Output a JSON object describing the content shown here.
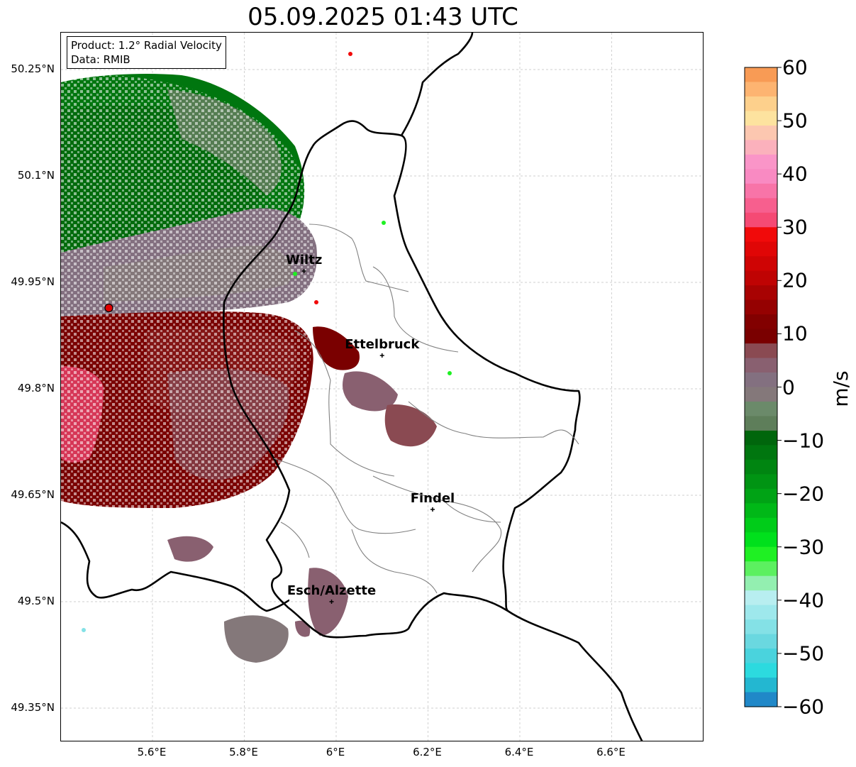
{
  "title": "05.09.2025 01:43 UTC",
  "info": {
    "product": "Product: 1.2° Radial Velocity",
    "data_source": "Data: RMIB"
  },
  "map": {
    "lat_ticks": [
      {
        "value": 50.25,
        "label": "50.25°N"
      },
      {
        "value": 50.1,
        "label": "50.1°N"
      },
      {
        "value": 49.95,
        "label": "49.95°N"
      },
      {
        "value": 49.8,
        "label": "49.8°N"
      },
      {
        "value": 49.65,
        "label": "49.65°N"
      },
      {
        "value": 49.5,
        "label": "49.5°N"
      },
      {
        "value": 49.35,
        "label": "49.35°N"
      }
    ],
    "lon_ticks": [
      {
        "value": 5.6,
        "label": "5.6°E"
      },
      {
        "value": 5.8,
        "label": "5.8°E"
      },
      {
        "value": 6.0,
        "label": "6°E"
      },
      {
        "value": 6.2,
        "label": "6.2°E"
      },
      {
        "value": 6.4,
        "label": "6.4°E"
      },
      {
        "value": 6.6,
        "label": "6.6°E"
      }
    ],
    "cities": [
      {
        "name": "Wiltz",
        "lon": 5.93,
        "lat": 49.966
      },
      {
        "name": "Ettelbruck",
        "lon": 6.1,
        "lat": 49.847
      },
      {
        "name": "Findel",
        "lon": 6.21,
        "lat": 49.63
      },
      {
        "name": "Esch/Alzette",
        "lon": 5.99,
        "lat": 49.5
      }
    ],
    "radar_site": {
      "lon": 5.505,
      "lat": 49.914
    }
  },
  "colorbar": {
    "unit": "m/s",
    "min": -60,
    "max": 60,
    "ticks": [
      {
        "value": 60,
        "label": "60"
      },
      {
        "value": 50,
        "label": "50"
      },
      {
        "value": 40,
        "label": "40"
      },
      {
        "value": 30,
        "label": "30"
      },
      {
        "value": 20,
        "label": "20"
      },
      {
        "value": 10,
        "label": "10"
      },
      {
        "value": 0,
        "label": "0"
      },
      {
        "value": -10,
        "label": "−10"
      },
      {
        "value": -20,
        "label": "−20"
      },
      {
        "value": -30,
        "label": "−30"
      },
      {
        "value": -40,
        "label": "−40"
      },
      {
        "value": -50,
        "label": "−50"
      },
      {
        "value": -60,
        "label": "−60"
      }
    ],
    "colors_top_to_bottom": [
      "#f89b55",
      "#fdb471",
      "#fdd08c",
      "#fde39f",
      "#fcc7b0",
      "#fbb1bc",
      "#fa95c8",
      "#f98ac2",
      "#f874a8",
      "#f75f8e",
      "#f54a74",
      "#f10a0a",
      "#e00606",
      "#cf0404",
      "#bf0303",
      "#a80202",
      "#950101",
      "#820000",
      "#7a0000",
      "#8a4a52",
      "#896070",
      "#837080",
      "#84787a",
      "#6b8a6a",
      "#5e7e5a",
      "#00660c",
      "#00760f",
      "#008511",
      "#009413",
      "#00a315",
      "#00b817",
      "#00cc19",
      "#00e01c",
      "#1ff023",
      "#5cf060",
      "#93efb0",
      "#b8eef0",
      "#9ee8ec",
      "#84e1e6",
      "#6ad8e0",
      "#4ad3dd",
      "#2cdadf",
      "#23b7d1",
      "#2088c8"
    ]
  }
}
